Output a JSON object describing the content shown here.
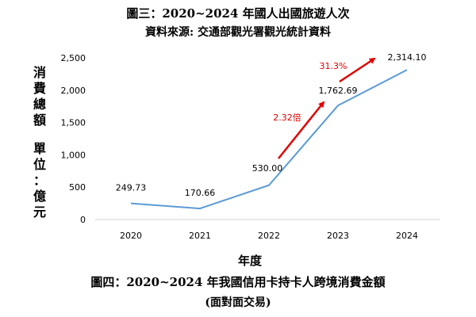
{
  "header": {
    "title": "圖三：2020~2024 年國人出國旅遊人次",
    "subtitle": "資料來源: 交通部觀光署觀光統計資料"
  },
  "chart_data": {
    "type": "line",
    "categories": [
      "2020",
      "2021",
      "2022",
      "2023",
      "2024"
    ],
    "values": [
      249.73,
      170.66,
      530.0,
      1762.69,
      2314.1
    ],
    "data_labels": [
      "249.73",
      "170.66",
      "530.00",
      "1,762.69",
      "2,314.10"
    ],
    "ylabel_line1": "消費總額",
    "ylabel_line2": "單位：億元",
    "xlabel": "年度",
    "ylim": [
      0,
      2500
    ],
    "yticks": [
      "0",
      "500",
      "1,000",
      "1,500",
      "2,000",
      "2,500"
    ],
    "grid": false,
    "line_color": "#5b9bd5",
    "annotations": [
      {
        "text": "2.32倍",
        "color": "#e00000"
      },
      {
        "text": "31.3%",
        "color": "#e00000"
      }
    ]
  },
  "footer": {
    "caption": "圖四：2020~2024 年我國信用卡持卡人跨境消費金額",
    "caption_sub": "(面對面交易)"
  }
}
